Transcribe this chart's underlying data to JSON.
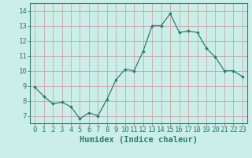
{
  "x": [
    0,
    1,
    2,
    3,
    4,
    5,
    6,
    7,
    8,
    9,
    10,
    11,
    12,
    13,
    14,
    15,
    16,
    17,
    18,
    19,
    20,
    21,
    22,
    23
  ],
  "y": [
    8.9,
    8.3,
    7.8,
    7.9,
    7.6,
    6.8,
    7.2,
    7.0,
    8.1,
    9.4,
    10.1,
    10.0,
    11.3,
    13.0,
    13.0,
    13.8,
    12.55,
    12.65,
    12.55,
    11.5,
    10.9,
    10.0,
    10.0,
    9.6
  ],
  "xlabel": "Humidex (Indice chaleur)",
  "xlim": [
    -0.5,
    23.5
  ],
  "ylim": [
    6.5,
    14.5
  ],
  "yticks": [
    7,
    8,
    9,
    10,
    11,
    12,
    13,
    14
  ],
  "xticks": [
    0,
    1,
    2,
    3,
    4,
    5,
    6,
    7,
    8,
    9,
    10,
    11,
    12,
    13,
    14,
    15,
    16,
    17,
    18,
    19,
    20,
    21,
    22,
    23
  ],
  "line_color": "#2e7d6e",
  "marker": "D",
  "marker_size": 1.8,
  "bg_color": "#cceee8",
  "grid_color": "#c8a8a8",
  "tick_label_fontsize": 6.5,
  "xlabel_fontsize": 7.5,
  "xlabel_color": "#2e7d6e",
  "tick_color": "#2e7d6e",
  "spine_color": "#2e7d6e"
}
